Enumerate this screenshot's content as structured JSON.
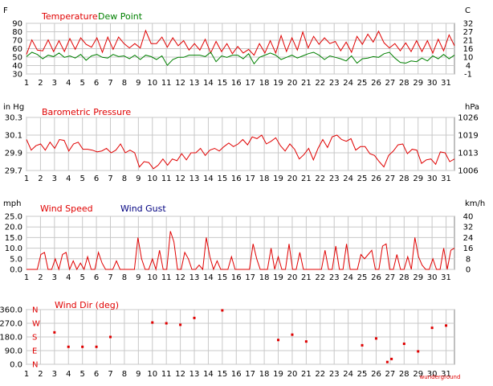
{
  "chart_data": [
    {
      "type": "line",
      "xlabel": "",
      "x_ticks": [
        1,
        2,
        3,
        4,
        5,
        6,
        7,
        8,
        9,
        10,
        11,
        12,
        13,
        14,
        15,
        16,
        17,
        18,
        19,
        20,
        21,
        22,
        23,
        24,
        25,
        26,
        27,
        28,
        29,
        30,
        31
      ],
      "xlim": [
        1,
        31.6
      ],
      "unit_left": "F",
      "unit_right": "C",
      "ylim": [
        30,
        100
      ],
      "yticks_left": [
        "90",
        "80",
        "70",
        "60",
        "50",
        "40",
        "30"
      ],
      "yticks_right": [
        "32",
        "27",
        "21",
        "16",
        "10",
        "4",
        "-1"
      ],
      "grid": true,
      "legend": "top-left",
      "series": [
        {
          "name": "Temperature",
          "color": "#e00000",
          "values": [
            57,
            77,
            63,
            62,
            77,
            61,
            76,
            61,
            79,
            64,
            80,
            71,
            67,
            80,
            60,
            81,
            64,
            81,
            72,
            66,
            72,
            66,
            90,
            72,
            72,
            81,
            67,
            80,
            69,
            76,
            63,
            72,
            63,
            78,
            59,
            75,
            61,
            72,
            58,
            68,
            59,
            64,
            56,
            72,
            59,
            76,
            59,
            83,
            61,
            80,
            63,
            88,
            66,
            82,
            71,
            80,
            72,
            75,
            62,
            74,
            60,
            82,
            71,
            85,
            74,
            89,
            73,
            66,
            72,
            62,
            73,
            61,
            76,
            61,
            76,
            59,
            78,
            62,
            84,
            69
          ]
        },
        {
          "name": "Dew Point",
          "color": "#008000",
          "values": [
            54,
            60,
            57,
            51,
            56,
            54,
            59,
            53,
            55,
            52,
            57,
            49,
            55,
            57,
            53,
            52,
            57,
            54,
            55,
            51,
            56,
            50,
            56,
            54,
            50,
            55,
            42,
            50,
            53,
            53,
            56,
            56,
            56,
            54,
            60,
            47,
            55,
            53,
            56,
            56,
            51,
            58,
            44,
            53,
            56,
            59,
            56,
            50,
            53,
            56,
            52,
            55,
            58,
            60,
            56,
            50,
            55,
            53,
            51,
            48,
            55,
            45,
            51,
            52,
            54,
            53,
            58,
            60,
            52,
            46,
            45,
            48,
            47,
            52,
            48,
            55,
            51,
            57,
            51,
            56
          ]
        }
      ]
    },
    {
      "type": "line",
      "unit_left": "in Hg",
      "unit_right": "hPa",
      "ylim": [
        29.7,
        30.3
      ],
      "yticks_left": [
        "30.3",
        "30.1",
        "29.9",
        "29.7"
      ],
      "yticks_right": [
        "1026",
        "1019",
        "1013",
        "1006"
      ],
      "grid": true,
      "legend": "top-left",
      "series": [
        {
          "name": "Barometric Pressure",
          "color": "#e00000",
          "values": [
            30.05,
            29.93,
            29.98,
            30.0,
            29.93,
            30.02,
            29.95,
            30.05,
            30.04,
            29.92,
            30.0,
            30.02,
            29.94,
            29.94,
            29.93,
            29.91,
            29.92,
            29.95,
            29.9,
            29.93,
            30.0,
            29.9,
            29.93,
            29.9,
            29.74,
            29.8,
            29.79,
            29.72,
            29.76,
            29.83,
            29.76,
            29.83,
            29.81,
            29.89,
            29.82,
            29.9,
            29.9,
            29.95,
            29.87,
            29.93,
            29.95,
            29.92,
            29.97,
            30.01,
            29.97,
            30.0,
            30.05,
            29.99,
            30.08,
            30.06,
            30.1,
            30.0,
            30.03,
            30.07,
            29.98,
            29.92,
            30.0,
            29.94,
            29.83,
            29.88,
            29.95,
            29.82,
            29.95,
            30.05,
            29.96,
            30.08,
            30.1,
            30.05,
            30.03,
            30.06,
            29.93,
            29.97,
            29.97,
            29.89,
            29.87,
            29.8,
            29.74,
            29.87,
            29.92,
            29.99,
            30.0,
            29.89,
            29.94,
            29.93,
            29.78,
            29.82,
            29.83,
            29.77,
            29.91,
            29.9,
            29.8,
            29.83
          ]
        }
      ]
    },
    {
      "type": "line",
      "unit_left": "mph",
      "unit_right": "km/h",
      "ylim": [
        0,
        25
      ],
      "yticks_left": [
        "25.0",
        "20.0",
        "15.0",
        "10.0",
        "5.0",
        "0.0"
      ],
      "yticks_right": [
        "40",
        "32",
        "24",
        "16",
        "8",
        "0"
      ],
      "grid": true,
      "legend": "top-left",
      "series": [
        {
          "name": "Wind Speed",
          "color": "#e00000",
          "values": [
            0,
            0,
            0,
            0,
            7,
            8,
            0,
            0,
            5,
            0,
            7,
            8,
            0,
            4,
            0,
            3,
            0,
            6,
            0,
            0,
            8,
            3,
            0,
            0,
            0,
            4,
            0,
            0,
            0,
            0,
            0,
            15,
            5,
            0,
            0,
            5,
            0,
            9,
            0,
            0,
            18,
            13,
            0,
            0,
            8,
            5,
            0,
            0,
            2,
            0,
            15,
            6,
            0,
            4,
            0,
            0,
            0,
            6,
            0,
            0,
            0,
            0,
            0,
            12,
            5,
            0,
            0,
            0,
            10,
            0,
            6,
            0,
            0,
            12,
            0,
            0,
            8,
            0,
            0,
            0,
            0,
            0,
            0,
            9,
            0,
            0,
            11,
            0,
            0,
            12,
            0,
            0,
            0,
            7,
            5,
            7,
            9,
            0,
            0,
            11,
            12,
            0,
            0,
            7,
            0,
            0,
            6,
            0,
            15,
            6,
            2,
            0,
            0,
            5,
            0,
            0,
            10,
            0,
            9,
            10
          ]
        },
        {
          "name": "Wind Gust",
          "color": "#000080",
          "values": []
        }
      ]
    },
    {
      "type": "scatter",
      "unit_left": "",
      "unit_right": "",
      "ylim": [
        0,
        360
      ],
      "yticks_left": [
        "360.0",
        "270.0",
        "180.0",
        "90.0",
        "0.0"
      ],
      "direction_labels": [
        "N",
        "W",
        "S",
        "E",
        "N"
      ],
      "grid": true,
      "legend": "top-left",
      "series": [
        {
          "name": "Wind Dir (deg)",
          "color": "#e00000",
          "points": [
            [
              3.0,
              210
            ],
            [
              4.0,
              115
            ],
            [
              5.0,
              115
            ],
            [
              6.0,
              115
            ],
            [
              7.0,
              180
            ],
            [
              10.0,
              275
            ],
            [
              11.0,
              270
            ],
            [
              12.0,
              260
            ],
            [
              13.0,
              305
            ],
            [
              15.0,
              355
            ],
            [
              19.0,
              160
            ],
            [
              20.0,
              195
            ],
            [
              21.0,
              150
            ],
            [
              25.0,
              125
            ],
            [
              26.0,
              170
            ],
            [
              26.8,
              15
            ],
            [
              27.1,
              35
            ],
            [
              28.0,
              135
            ],
            [
              29.0,
              85
            ],
            [
              30.0,
              240
            ],
            [
              31.0,
              255
            ]
          ]
        }
      ]
    }
  ],
  "panels": [
    {
      "legend": [
        {
          "label": "Temperature",
          "color": "#e00000"
        },
        {
          "label": "Dew Point",
          "color": "#008000"
        }
      ]
    },
    {
      "legend": [
        {
          "label": "Barometric Pressure",
          "color": "#e00000"
        }
      ]
    },
    {
      "legend": [
        {
          "label": "Wind Speed",
          "color": "#e00000"
        },
        {
          "label": "Wind Gust",
          "color": "#000080"
        }
      ]
    },
    {
      "legend": [
        {
          "label": "Wind Dir (deg)",
          "color": "#e00000"
        }
      ]
    }
  ],
  "watermark": "Weather Underground"
}
